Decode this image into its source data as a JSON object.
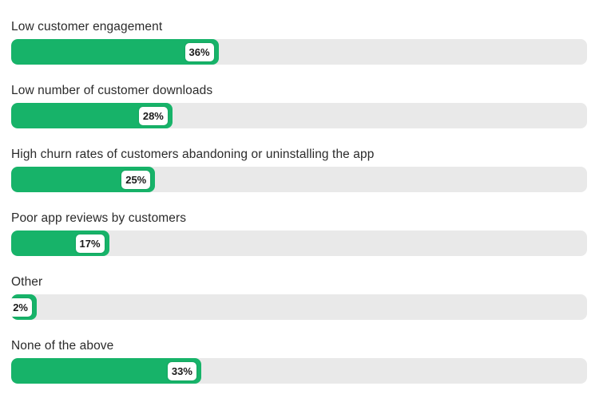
{
  "chart_data": {
    "type": "bar",
    "orientation": "horizontal",
    "title": "",
    "xlabel": "",
    "ylabel": "",
    "xlim": [
      0,
      100
    ],
    "grid": false,
    "legend": false,
    "bar_color": "#17b369",
    "track_color": "#e9e9e9",
    "categories": [
      "Low customer engagement",
      "Low number of customer downloads",
      "High churn rates of customers abandoning or uninstalling the app",
      "Poor app reviews by customers",
      "Other",
      "None of the above"
    ],
    "values": [
      36,
      28,
      25,
      17,
      2,
      33
    ],
    "value_labels": [
      "36%",
      "28%",
      "25%",
      "17%",
      "2%",
      "33%"
    ]
  }
}
